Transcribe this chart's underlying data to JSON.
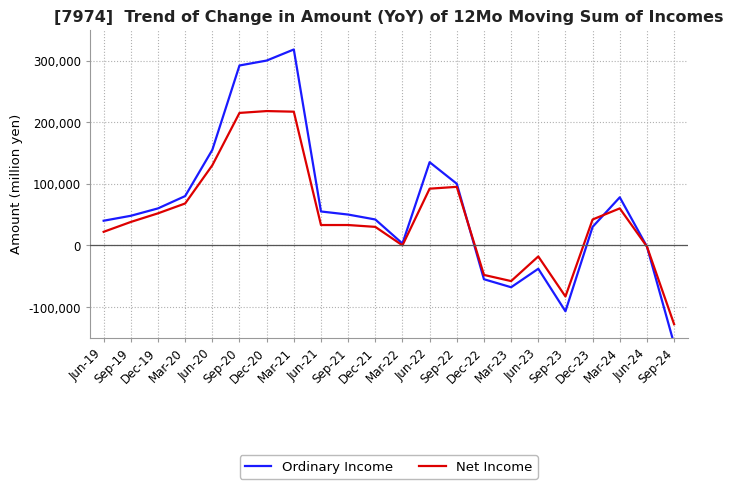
{
  "title": "[7974]  Trend of Change in Amount (YoY) of 12Mo Moving Sum of Incomes",
  "ylabel": "Amount (million yen)",
  "title_fontsize": 11.5,
  "label_fontsize": 9.5,
  "tick_fontsize": 8.5,
  "x_labels": [
    "Jun-19",
    "Sep-19",
    "Dec-19",
    "Mar-20",
    "Jun-20",
    "Sep-20",
    "Dec-20",
    "Mar-21",
    "Jun-21",
    "Sep-21",
    "Dec-21",
    "Mar-22",
    "Jun-22",
    "Sep-22",
    "Dec-22",
    "Mar-23",
    "Jun-23",
    "Sep-23",
    "Dec-23",
    "Mar-24",
    "Jun-24",
    "Sep-24"
  ],
  "ordinary_income": [
    40000,
    48000,
    60000,
    80000,
    155000,
    292000,
    300000,
    318000,
    55000,
    50000,
    42000,
    3000,
    135000,
    100000,
    -55000,
    -68000,
    -38000,
    -107000,
    30000,
    78000,
    -2000,
    -160000
  ],
  "net_income": [
    22000,
    38000,
    52000,
    68000,
    130000,
    215000,
    218000,
    217000,
    33000,
    33000,
    30000,
    0,
    92000,
    95000,
    -48000,
    -58000,
    -18000,
    -83000,
    42000,
    60000,
    -2000,
    -128000
  ],
  "ordinary_color": "#1a1aff",
  "net_color": "#dd0000",
  "background_color": "#ffffff",
  "grid_color": "#b0b0b0",
  "ylim": [
    -150000,
    350000
  ],
  "yticks": [
    -100000,
    0,
    100000,
    200000,
    300000
  ]
}
